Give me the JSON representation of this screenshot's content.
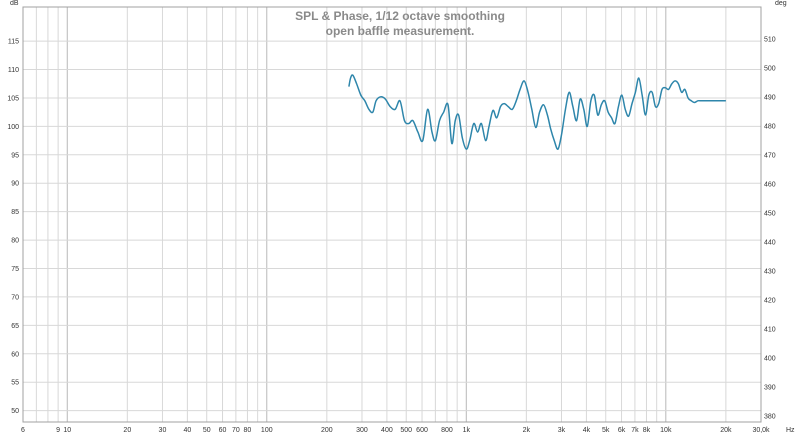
{
  "chart_data": {
    "type": "line",
    "title": "SPL & Phase, 1/12 octave smoothing",
    "subtitle": "open baffle measurement.",
    "y_unit_left": "dB",
    "y_unit_right": "deg",
    "x_unit": "Hz",
    "x_scale": "log",
    "xlim": [
      6,
      30000
    ],
    "ylim": [
      48,
      121
    ],
    "y2lim": [
      378,
      521
    ],
    "grid": true,
    "x_ticks": [
      {
        "v": 6,
        "label": "6"
      },
      {
        "v": 9,
        "label": "9"
      },
      {
        "v": 10,
        "label": "10"
      },
      {
        "v": 20,
        "label": "20"
      },
      {
        "v": 30,
        "label": "30"
      },
      {
        "v": 40,
        "label": "40"
      },
      {
        "v": 50,
        "label": "50"
      },
      {
        "v": 60,
        "label": "60"
      },
      {
        "v": 70,
        "label": "70"
      },
      {
        "v": 80,
        "label": "80"
      },
      {
        "v": 100,
        "label": "100"
      },
      {
        "v": 200,
        "label": "200"
      },
      {
        "v": 300,
        "label": "300"
      },
      {
        "v": 400,
        "label": "400"
      },
      {
        "v": 500,
        "label": "500"
      },
      {
        "v": 600,
        "label": "600"
      },
      {
        "v": 800,
        "label": "800"
      },
      {
        "v": 1000,
        "label": "1k"
      },
      {
        "v": 2000,
        "label": "2k"
      },
      {
        "v": 3000,
        "label": "3k"
      },
      {
        "v": 4000,
        "label": "4k"
      },
      {
        "v": 5000,
        "label": "5k"
      },
      {
        "v": 6000,
        "label": "6k"
      },
      {
        "v": 7000,
        "label": "7k"
      },
      {
        "v": 8000,
        "label": "8k"
      },
      {
        "v": 10000,
        "label": "10k"
      },
      {
        "v": 20000,
        "label": "20k"
      },
      {
        "v": 30000,
        "label": "30,0k"
      }
    ],
    "y_ticks": [
      {
        "v": 50,
        "label": "50"
      },
      {
        "v": 55,
        "label": "55"
      },
      {
        "v": 60,
        "label": "60"
      },
      {
        "v": 65,
        "label": "65"
      },
      {
        "v": 70,
        "label": "70"
      },
      {
        "v": 75,
        "label": "75"
      },
      {
        "v": 80,
        "label": "80"
      },
      {
        "v": 85,
        "label": "85"
      },
      {
        "v": 90,
        "label": "90"
      },
      {
        "v": 95,
        "label": "95"
      },
      {
        "v": 100,
        "label": "100"
      },
      {
        "v": 105,
        "label": "105"
      },
      {
        "v": 110,
        "label": "110"
      },
      {
        "v": 115,
        "label": "115"
      }
    ],
    "y2_ticks": [
      {
        "v": 380,
        "label": "380"
      },
      {
        "v": 390,
        "label": "390"
      },
      {
        "v": 400,
        "label": "400"
      },
      {
        "v": 410,
        "label": "410"
      },
      {
        "v": 420,
        "label": "420"
      },
      {
        "v": 430,
        "label": "430"
      },
      {
        "v": 440,
        "label": "440"
      },
      {
        "v": 450,
        "label": "450"
      },
      {
        "v": 460,
        "label": "460"
      },
      {
        "v": 470,
        "label": "470"
      },
      {
        "v": 480,
        "label": "480"
      },
      {
        "v": 490,
        "label": "490"
      },
      {
        "v": 500,
        "label": "500"
      },
      {
        "v": 510,
        "label": "510"
      }
    ],
    "series": [
      {
        "color": "#2e86ab",
        "x": [
          258,
          263,
          270,
          282,
          296,
          310,
          325,
          340,
          353,
          372,
          393,
          415,
          440,
          465,
          490,
          515,
          540,
          572,
          605,
          640,
          673,
          700,
          734,
          770,
          810,
          846,
          880,
          915,
          955,
          1000,
          1040,
          1090,
          1140,
          1190,
          1250,
          1300,
          1360,
          1420,
          1485,
          1550,
          1620,
          1700,
          1780,
          1860,
          1950,
          2040,
          2130,
          2230,
          2330,
          2440,
          2550,
          2650,
          2760,
          2880,
          3000,
          3140,
          3280,
          3420,
          3570,
          3720,
          3880,
          4040,
          4210,
          4380,
          4560,
          4750,
          4940,
          5140,
          5350,
          5560,
          5790,
          6020,
          6260,
          6510,
          6770,
          7040,
          7320,
          7610,
          7910,
          8220,
          8540,
          8870,
          9210,
          9570,
          9940,
          10320,
          10720,
          11130,
          11560,
          12000,
          12460,
          12930,
          13420,
          13930,
          14460,
          15000,
          15570,
          16150,
          16760,
          17390,
          18040,
          18720,
          19410,
          20000
        ],
        "y": [
          107.0,
          108.5,
          109.0,
          107.5,
          105.5,
          104.5,
          103.0,
          102.5,
          104.5,
          105.2,
          104.8,
          103.5,
          103.0,
          104.5,
          101.0,
          100.5,
          101.0,
          99.0,
          97.5,
          103.0,
          99.0,
          97.5,
          101.0,
          102.5,
          103.8,
          97.0,
          101.0,
          102.0,
          98.0,
          96.0,
          97.5,
          100.5,
          99.0,
          100.5,
          97.5,
          100.0,
          102.8,
          101.5,
          103.5,
          104.0,
          103.5,
          103.0,
          104.5,
          106.5,
          108.0,
          106.0,
          103.0,
          99.8,
          102.5,
          103.8,
          102.0,
          99.5,
          97.5,
          96.0,
          98.5,
          103.0,
          106.0,
          103.5,
          101.0,
          104.8,
          103.0,
          100.0,
          104.5,
          105.5,
          102.0,
          103.8,
          104.5,
          102.5,
          101.5,
          100.5,
          103.5,
          105.5,
          103.0,
          101.8,
          104.0,
          106.0,
          108.5,
          105.5,
          102.0,
          105.5,
          106.0,
          103.5,
          104.0,
          106.5,
          106.8,
          106.5,
          107.5,
          108.0,
          107.5,
          106.0,
          106.5,
          105.0,
          104.5,
          104.2,
          104.5,
          104.5,
          104.5,
          104.5,
          104.5,
          104.5,
          104.5,
          104.5,
          104.5,
          104.5
        ]
      }
    ]
  }
}
